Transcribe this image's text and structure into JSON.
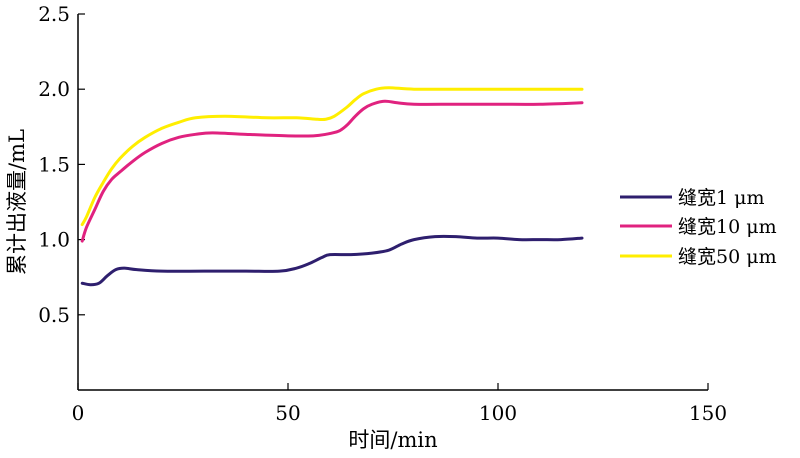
{
  "chart_data": {
    "type": "line",
    "title": "",
    "xlabel": "时间/min",
    "ylabel": "累计出液量/mL",
    "xlim": [
      0,
      150
    ],
    "ylim": [
      0,
      2.5
    ],
    "xticks": [
      0,
      50,
      100,
      150
    ],
    "yticks": [
      0.5,
      1.0,
      1.5,
      2.0,
      2.5
    ],
    "xtick_labels": [
      "0",
      "50",
      "100",
      "150"
    ],
    "ytick_labels": [
      "0.5",
      "1.0",
      "1.5",
      "2.0",
      "2.5"
    ],
    "grid": false,
    "legend_position": "right",
    "series": [
      {
        "name": "缝宽1 μm",
        "color": "#2e1f6e",
        "points": [
          [
            1,
            0.71
          ],
          [
            3,
            0.7
          ],
          [
            5,
            0.71
          ],
          [
            7,
            0.76
          ],
          [
            9,
            0.8
          ],
          [
            11,
            0.81
          ],
          [
            14,
            0.8
          ],
          [
            20,
            0.79
          ],
          [
            30,
            0.79
          ],
          [
            40,
            0.79
          ],
          [
            48,
            0.79
          ],
          [
            52,
            0.81
          ],
          [
            55,
            0.84
          ],
          [
            58,
            0.88
          ],
          [
            60,
            0.9
          ],
          [
            65,
            0.9
          ],
          [
            70,
            0.91
          ],
          [
            74,
            0.93
          ],
          [
            77,
            0.97
          ],
          [
            80,
            1.0
          ],
          [
            85,
            1.02
          ],
          [
            90,
            1.02
          ],
          [
            95,
            1.01
          ],
          [
            100,
            1.01
          ],
          [
            105,
            1.0
          ],
          [
            110,
            1.0
          ],
          [
            115,
            1.0
          ],
          [
            120,
            1.01
          ]
        ]
      },
      {
        "name": "缝宽10 μm",
        "color": "#e0227f",
        "points": [
          [
            1,
            0.99
          ],
          [
            2,
            1.08
          ],
          [
            4,
            1.2
          ],
          [
            6,
            1.32
          ],
          [
            8,
            1.4
          ],
          [
            10,
            1.45
          ],
          [
            13,
            1.52
          ],
          [
            16,
            1.58
          ],
          [
            20,
            1.64
          ],
          [
            24,
            1.68
          ],
          [
            28,
            1.7
          ],
          [
            32,
            1.71
          ],
          [
            40,
            1.7
          ],
          [
            50,
            1.69
          ],
          [
            56,
            1.69
          ],
          [
            59,
            1.7
          ],
          [
            62,
            1.72
          ],
          [
            64,
            1.76
          ],
          [
            66,
            1.82
          ],
          [
            68,
            1.87
          ],
          [
            70,
            1.9
          ],
          [
            73,
            1.92
          ],
          [
            76,
            1.91
          ],
          [
            80,
            1.9
          ],
          [
            90,
            1.9
          ],
          [
            100,
            1.9
          ],
          [
            110,
            1.9
          ],
          [
            120,
            1.91
          ]
        ]
      },
      {
        "name": "缝宽50 μm",
        "color": "#ffee00",
        "points": [
          [
            1,
            1.1
          ],
          [
            2,
            1.15
          ],
          [
            4,
            1.28
          ],
          [
            6,
            1.38
          ],
          [
            8,
            1.47
          ],
          [
            10,
            1.54
          ],
          [
            13,
            1.62
          ],
          [
            16,
            1.68
          ],
          [
            20,
            1.74
          ],
          [
            24,
            1.78
          ],
          [
            28,
            1.81
          ],
          [
            35,
            1.82
          ],
          [
            45,
            1.81
          ],
          [
            52,
            1.81
          ],
          [
            57,
            1.8
          ],
          [
            59,
            1.8
          ],
          [
            61,
            1.82
          ],
          [
            64,
            1.88
          ],
          [
            66,
            1.93
          ],
          [
            68,
            1.97
          ],
          [
            71,
            2.0
          ],
          [
            74,
            2.01
          ],
          [
            80,
            2.0
          ],
          [
            90,
            2.0
          ],
          [
            100,
            2.0
          ],
          [
            110,
            2.0
          ],
          [
            120,
            2.0
          ]
        ]
      }
    ]
  }
}
